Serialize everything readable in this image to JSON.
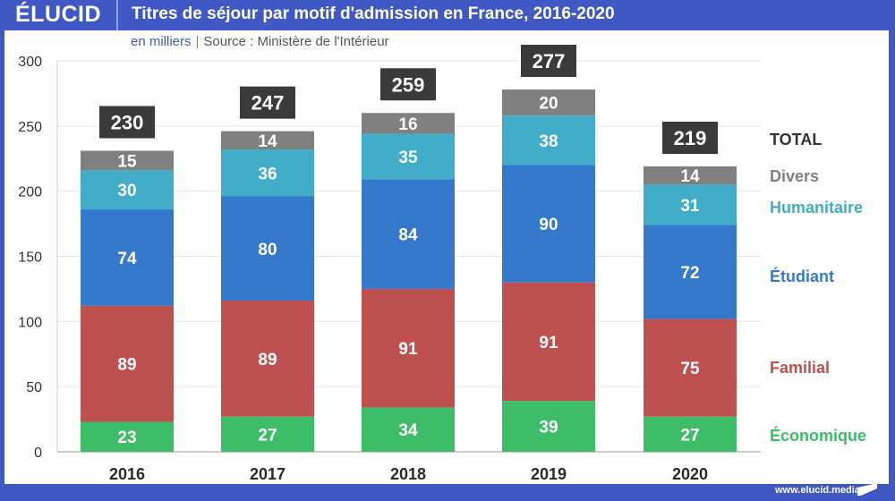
{
  "header": {
    "logo": "ÉLUCID",
    "title": "Titres de séjour par motif d'admission en France, 2016-2020",
    "unit": "en milliers",
    "source": "Source : Ministère de l'Intérieur"
  },
  "footer": {
    "url": "www.elucid.media"
  },
  "colors": {
    "Économique": "#3dbd68",
    "Familial": "#be5150",
    "Étudiant": "#3479cc",
    "Humanitaire": "#41adc9",
    "Divers": "#808080",
    "total_box": "#3a3a3a",
    "legend_total": "#333333",
    "legend_divers": "#808080",
    "legend_humanitaire": "#41adc9",
    "legend_etudiant": "#3479cc",
    "legend_familial": "#be5150",
    "legend_economique": "#3dbd68"
  },
  "chart_data": {
    "type": "bar",
    "stacked": true,
    "title": "Titres de séjour par motif d'admission en France, 2016-2020",
    "subtitle": "en milliers | Source : Ministère de l'Intérieur",
    "xlabel": "",
    "ylabel": "",
    "ylim": [
      0,
      300
    ],
    "yticks": [
      0,
      50,
      100,
      150,
      200,
      250,
      300
    ],
    "grid": true,
    "legend_placement": "right",
    "categories": [
      "2016",
      "2017",
      "2018",
      "2019",
      "2020"
    ],
    "series": [
      {
        "name": "Économique",
        "values": [
          23,
          27,
          34,
          39,
          27
        ]
      },
      {
        "name": "Familial",
        "values": [
          89,
          89,
          91,
          91,
          75
        ]
      },
      {
        "name": "Étudiant",
        "values": [
          74,
          80,
          84,
          90,
          72
        ]
      },
      {
        "name": "Humanitaire",
        "values": [
          30,
          36,
          35,
          38,
          31
        ]
      },
      {
        "name": "Divers",
        "values": [
          15,
          14,
          16,
          20,
          14
        ]
      }
    ],
    "totals": [
      230,
      247,
      259,
      277,
      219
    ],
    "total_label": "TOTAL"
  }
}
